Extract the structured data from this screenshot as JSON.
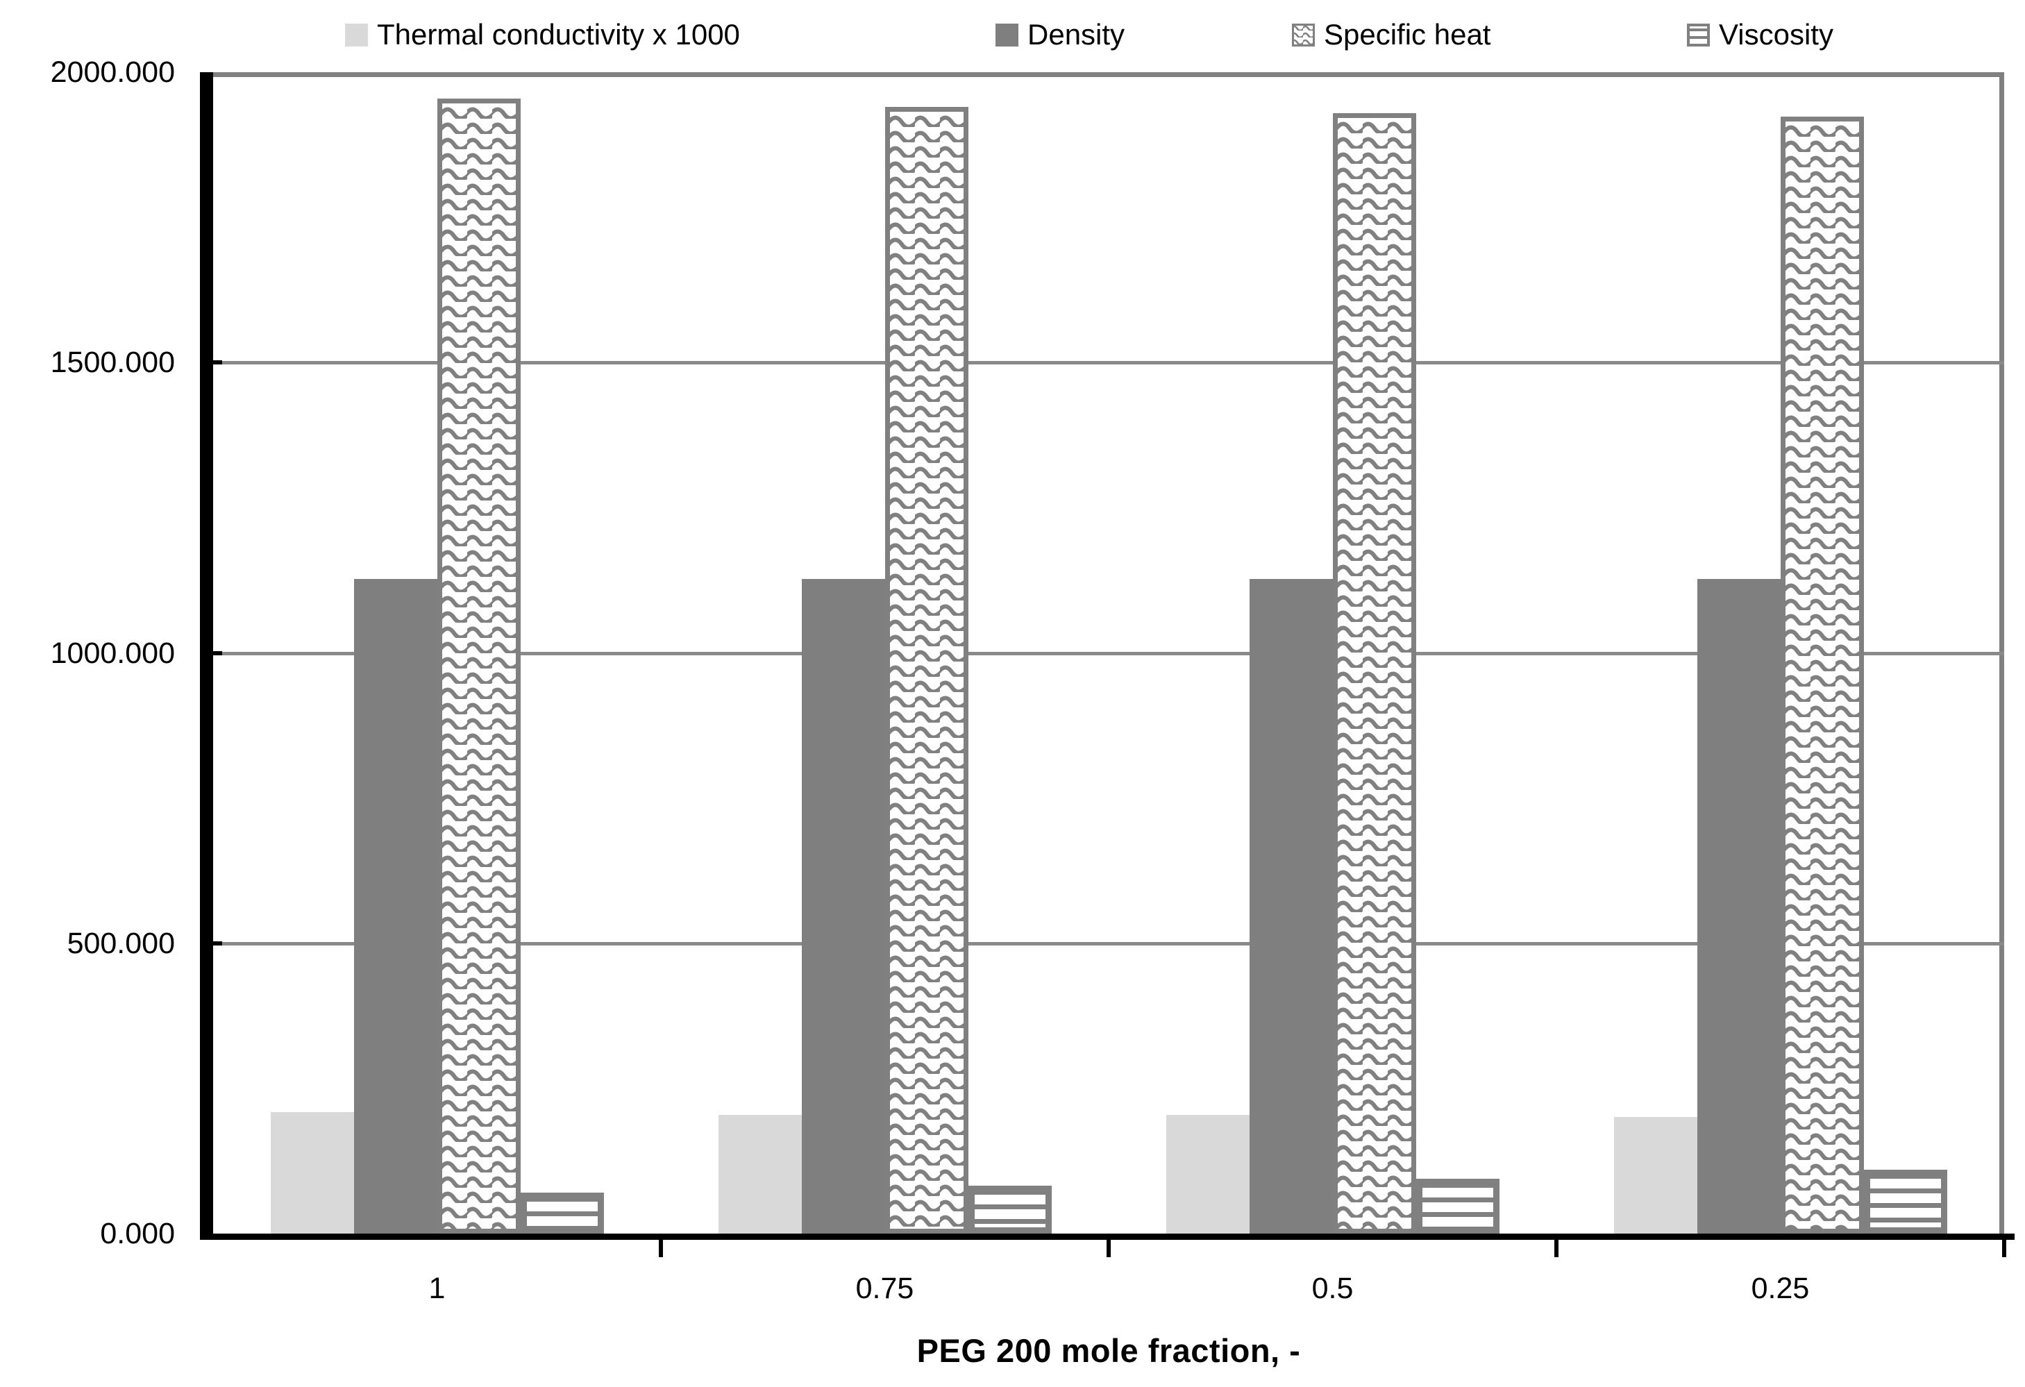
{
  "chart_data": {
    "type": "bar",
    "title": "",
    "xlabel": "PEG 200 mole fraction, -",
    "ylabel": "",
    "ylim": [
      0,
      2000
    ],
    "ytick_values": [
      0,
      500,
      1000,
      1500,
      2000
    ],
    "ytick_labels": [
      "0.000",
      "500.000",
      "1000.000",
      "1500.000",
      "2000.000"
    ],
    "categories": [
      "1",
      "0.75",
      "0.5",
      "0.25"
    ],
    "series": [
      {
        "name": "Thermal conductivity x 1000",
        "swatch": "light",
        "values": [
          209,
          205,
          205,
          201
        ]
      },
      {
        "name": "Density",
        "swatch": "dark",
        "values": [
          1127,
          1127,
          1127,
          1127
        ]
      },
      {
        "name": "Specific heat",
        "swatch": "wave",
        "values": [
          1955,
          1940,
          1930,
          1924
        ]
      },
      {
        "name": "Viscosity",
        "swatch": "hlines",
        "values": [
          70,
          83,
          95,
          110
        ]
      }
    ],
    "grid": true,
    "legend_position": "top"
  },
  "colors": {
    "light_gray": "#d9d9d9",
    "dark_gray": "#7f7f7f",
    "pattern_gray": "#808080",
    "border_gray": "#808080",
    "gridline_gray": "#8a8a8a",
    "axis_black": "#000000",
    "text_black": "#000000",
    "background": "#ffffff"
  }
}
